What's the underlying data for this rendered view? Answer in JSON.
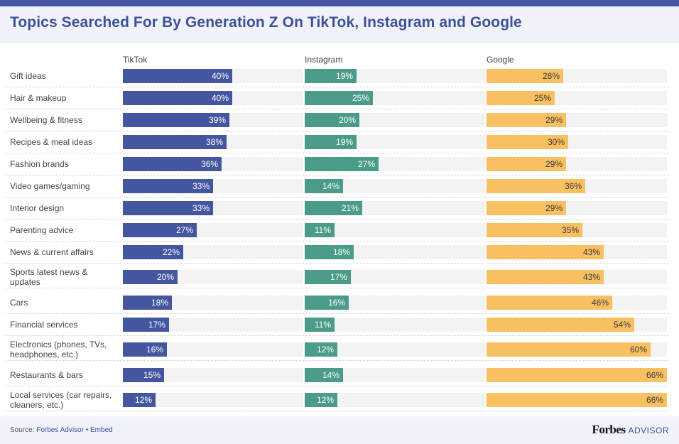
{
  "header": {
    "title": "Topics Searched For By Generation Z On TikTok, Instagram and Google"
  },
  "footer": {
    "source_prefix": "Source: ",
    "source_link": "Forbes Advisor",
    "separator": " • ",
    "embed_link": "Embed",
    "brand_name": "Forbes",
    "brand_suffix": "ADVISOR"
  },
  "chart_data": {
    "type": "bar",
    "orientation": "horizontal",
    "title": "Topics Searched For By Generation Z On TikTok, Instagram and Google",
    "xlabel": "",
    "ylabel": "",
    "unit": "%",
    "xlim": [
      0,
      66
    ],
    "grid": false,
    "legend": "none",
    "categories": [
      "Gift ideas",
      "Hair & makeup",
      "Wellbeing & fitness",
      "Recipes & meal ideas",
      "Fashion brands",
      "Video games/gaming",
      "Interior design",
      "Parenting advice",
      "News & current affairs",
      "Sports latest news & updates",
      "Cars",
      "Financial services",
      "Electronics (phones, TVs, headphones, etc.)",
      "Restaurants & bars",
      "Local services (car repairs, cleaners, etc.)"
    ],
    "series": [
      {
        "name": "TikTok",
        "color": "#4456a0",
        "label_color": "#ffffff",
        "values": [
          40,
          40,
          39,
          38,
          36,
          33,
          33,
          27,
          22,
          20,
          18,
          17,
          16,
          15,
          12
        ],
        "labels": [
          "40%",
          "40%",
          "39%",
          "38%",
          "36%",
          "33%",
          "33%",
          "27%",
          "22%",
          "20%",
          "18%",
          "17%",
          "16%",
          "15%",
          "12%"
        ]
      },
      {
        "name": "Instagram",
        "color": "#4a9c88",
        "label_color": "#ffffff",
        "values": [
          19,
          25,
          20,
          19,
          27,
          14,
          21,
          11,
          18,
          17,
          16,
          11,
          12,
          14,
          12
        ],
        "labels": [
          "19%",
          "25%",
          "20%",
          "19%",
          "27%",
          "14%",
          "21%",
          "11%",
          "18%",
          "17%",
          "16%",
          "11%",
          "12%",
          "14%",
          "12%"
        ]
      },
      {
        "name": "Google",
        "color": "#f9c062",
        "label_color": "#3a3a3a",
        "values": [
          28,
          25,
          29,
          30,
          29,
          36,
          29,
          35,
          43,
          43,
          46,
          54,
          60,
          66,
          66
        ],
        "labels": [
          "28%",
          "25%",
          "29%",
          "30%",
          "29%",
          "36%",
          "29%",
          "35%",
          "43%",
          "43%",
          "46%",
          "54%",
          "60%",
          "66%",
          "66%"
        ]
      }
    ]
  }
}
